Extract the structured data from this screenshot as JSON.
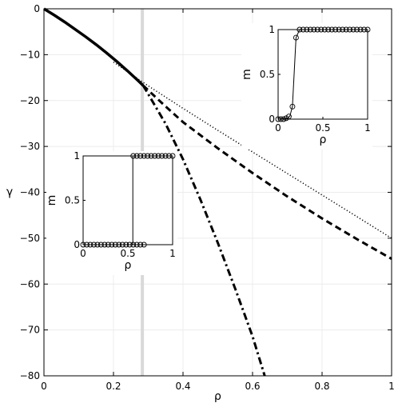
{
  "chart_data": {
    "main": {
      "type": "line",
      "xlabel": "ρ",
      "ylabel": "γ",
      "xlim": [
        0,
        1
      ],
      "ylim": [
        -80,
        0
      ],
      "x_ticks": [
        0,
        0.2,
        0.4,
        0.6,
        0.8,
        1
      ],
      "x_tick_labels": [
        "0",
        "0.2",
        "0.4",
        "0.6",
        "0.8",
        "1"
      ],
      "y_ticks": [
        0,
        -10,
        -20,
        -30,
        -40,
        -50,
        -60,
        -70,
        -80
      ],
      "y_tick_labels": [
        "0",
        "−10",
        "−20",
        "−30",
        "−40",
        "−50",
        "−60",
        "−70",
        "−80"
      ],
      "grid": true,
      "vertical_marker_x": 0.283,
      "vertical_marker_color": "#d9d9d9",
      "series": [
        {
          "style": "solid",
          "color": "#000000",
          "points": [
            [
              0,
              0
            ],
            [
              0.03,
              -1.4
            ],
            [
              0.06,
              -2.9
            ],
            [
              0.09,
              -4.5
            ],
            [
              0.12,
              -6.1
            ],
            [
              0.15,
              -7.8
            ],
            [
              0.18,
              -9.6
            ],
            [
              0.21,
              -11.5
            ],
            [
              0.24,
              -13.5
            ],
            [
              0.27,
              -15.6
            ],
            [
              0.285,
              -16.7
            ]
          ]
        },
        {
          "style": "dotted",
          "color": "#000000",
          "points": [
            [
              0.2,
              -11.6
            ],
            [
              0.3,
              -16.8
            ],
            [
              0.4,
              -21.7
            ],
            [
              0.5,
              -26.5
            ],
            [
              0.6,
              -31.2
            ],
            [
              0.7,
              -35.9
            ],
            [
              0.8,
              -40.6
            ],
            [
              0.9,
              -45.3
            ],
            [
              1.0,
              -50.0
            ]
          ]
        },
        {
          "style": "dashed",
          "color": "#000000",
          "points": [
            [
              0.285,
              -16.7
            ],
            [
              0.35,
              -21.3
            ],
            [
              0.4,
              -24.7
            ],
            [
              0.5,
              -30.4
            ],
            [
              0.6,
              -35.8
            ],
            [
              0.7,
              -40.9
            ],
            [
              0.8,
              -45.7
            ],
            [
              0.9,
              -50.2
            ],
            [
              1.0,
              -54.5
            ]
          ]
        },
        {
          "style": "dashdot",
          "color": "#000000",
          "points": [
            [
              0.285,
              -16.7
            ],
            [
              0.3,
              -18.6
            ],
            [
              0.35,
              -25.1
            ],
            [
              0.4,
              -32.8
            ],
            [
              0.45,
              -41.6
            ],
            [
              0.5,
              -51.0
            ],
            [
              0.55,
              -61.0
            ],
            [
              0.6,
              -71.4
            ],
            [
              0.635,
              -80.0
            ]
          ]
        }
      ]
    },
    "inset_bottom_left": {
      "type": "scatter",
      "xlabel": "ρ",
      "ylabel": "m",
      "xlim": [
        0,
        1
      ],
      "ylim": [
        0,
        1
      ],
      "x_ticks": [
        0,
        0.5,
        1
      ],
      "x_tick_labels": [
        "0",
        "0.5",
        "1"
      ],
      "y_ticks": [
        0,
        0.5,
        1
      ],
      "y_tick_labels": [
        "0",
        "0.5",
        "1"
      ],
      "marker": "circle",
      "line": [
        [
          0,
          0
        ],
        [
          0.555,
          0
        ],
        [
          0.555,
          1
        ],
        [
          1,
          1
        ]
      ],
      "points_low": {
        "x": [
          0,
          0.04,
          0.08,
          0.12,
          0.16,
          0.2,
          0.24,
          0.28,
          0.32,
          0.36,
          0.4,
          0.44,
          0.48,
          0.52,
          0.56,
          0.6,
          0.64,
          0.68
        ],
        "y": 0
      },
      "points_high": {
        "x": [
          0.56,
          0.6,
          0.64,
          0.68,
          0.72,
          0.76,
          0.8,
          0.84,
          0.88,
          0.92,
          0.96,
          1.0
        ],
        "y": 1
      }
    },
    "inset_top_right": {
      "type": "scatter",
      "xlabel": "ρ",
      "ylabel": "m",
      "xlim": [
        0,
        1
      ],
      "ylim": [
        0,
        1
      ],
      "x_ticks": [
        0,
        0.5,
        1
      ],
      "x_tick_labels": [
        "0",
        "0.5",
        "1"
      ],
      "y_ticks": [
        0,
        0.5,
        1
      ],
      "y_tick_labels": [
        "0",
        "0.5",
        "1"
      ],
      "marker": "circle",
      "line": [
        [
          0,
          0
        ],
        [
          0.1,
          0.01
        ],
        [
          0.13,
          0.03
        ],
        [
          0.16,
          0.14
        ],
        [
          0.2,
          0.91
        ],
        [
          0.24,
          1
        ],
        [
          1,
          1
        ]
      ],
      "points": [
        [
          0,
          0
        ],
        [
          0.03,
          0
        ],
        [
          0.06,
          0
        ],
        [
          0.09,
          0.01
        ],
        [
          0.12,
          0.03
        ],
        [
          0.16,
          0.14
        ],
        [
          0.2,
          0.91
        ],
        [
          0.24,
          1
        ],
        [
          0.28,
          1
        ],
        [
          0.32,
          1
        ],
        [
          0.36,
          1
        ],
        [
          0.4,
          1
        ],
        [
          0.44,
          1
        ],
        [
          0.48,
          1
        ],
        [
          0.52,
          1
        ],
        [
          0.56,
          1
        ],
        [
          0.6,
          1
        ],
        [
          0.64,
          1
        ],
        [
          0.68,
          1
        ],
        [
          0.72,
          1
        ],
        [
          0.76,
          1
        ],
        [
          0.8,
          1
        ],
        [
          0.84,
          1
        ],
        [
          0.88,
          1
        ],
        [
          0.92,
          1
        ],
        [
          0.96,
          1
        ],
        [
          1.0,
          1
        ]
      ]
    }
  }
}
